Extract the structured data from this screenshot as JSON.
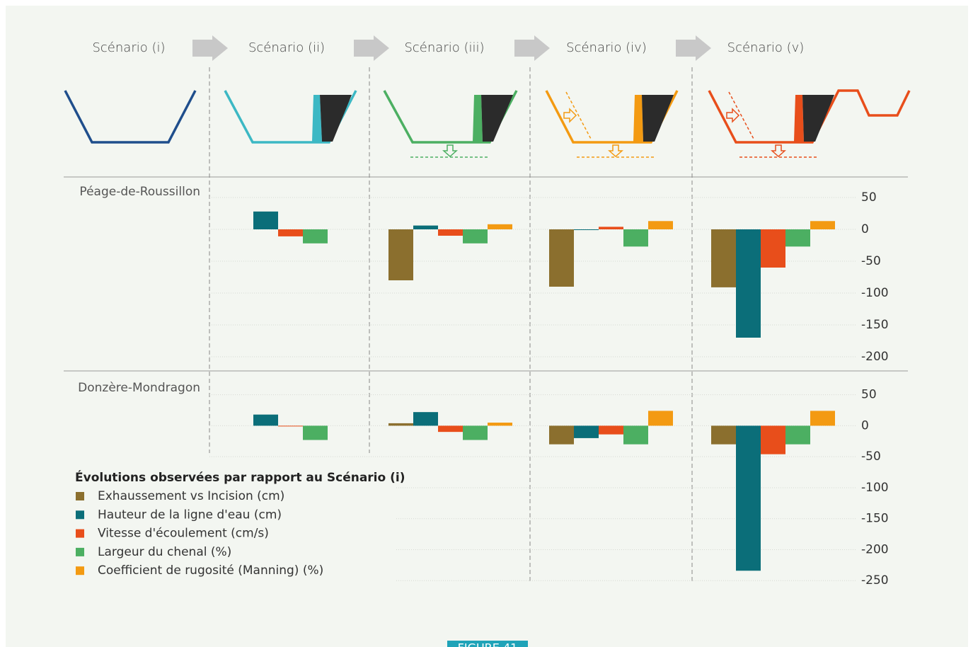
{
  "scenarios": [
    "Scénario (i)",
    "Scénario (ii)",
    "Scénario (iii)",
    "Scénario (iv)",
    "Scénario (v)"
  ],
  "legend_title": "Évolutions observées par rapport au Scénario (i)",
  "figure_label": "FIGURE 41",
  "chart_data": [
    {
      "type": "bar",
      "title": "Péage-de-Roussillon",
      "categories": [
        null,
        null,
        null,
        null
      ],
      "series": [
        {
          "name": "Exhaussement vs Incision (cm)",
          "color": "#8b6f2e",
          "values": [
            null,
            -80,
            -90,
            -91
          ]
        },
        {
          "name": "Hauteur de la ligne d'eau (cm)",
          "color": "#0b6e79",
          "values": [
            28,
            6,
            -1,
            -170
          ]
        },
        {
          "name": "Vitesse d'écoulement (cm/s)",
          "color": "#e84e1b",
          "values": [
            -11,
            -10,
            4,
            -60
          ]
        },
        {
          "name": "Largeur du chenal (%)",
          "color": "#4caf62",
          "values": [
            -22,
            -22,
            -27,
            -27
          ]
        },
        {
          "name": "Coefficient de rugosité (Manning) (%)",
          "color": "#f39a12",
          "values": [
            null,
            8,
            13,
            13
          ]
        }
      ],
      "ylim": [
        -220,
        80
      ],
      "yticks": [
        50,
        0,
        -50,
        -100,
        -150,
        -200
      ],
      "grid": true
    },
    {
      "type": "bar",
      "title": "Donzère-Mondragon",
      "categories": [
        null,
        null,
        null,
        null
      ],
      "series": [
        {
          "color": "#8b6f2e",
          "values": [
            null,
            4,
            -30,
            -30
          ]
        },
        {
          "color": "#0b6e79",
          "values": [
            18,
            22,
            -20,
            -234
          ]
        },
        {
          "color": "#e84e1b",
          "values": [
            -1,
            -10,
            -14,
            -46
          ]
        },
        {
          "color": "#4caf62",
          "values": [
            -23,
            -23,
            -30,
            -30
          ]
        },
        {
          "color": "#f39a12",
          "values": [
            null,
            5,
            24,
            24
          ]
        }
      ],
      "ylim": [
        -260,
        85
      ],
      "yticks": [
        50,
        0,
        -50,
        -100,
        -150,
        -200,
        -250
      ],
      "grid": true
    }
  ]
}
